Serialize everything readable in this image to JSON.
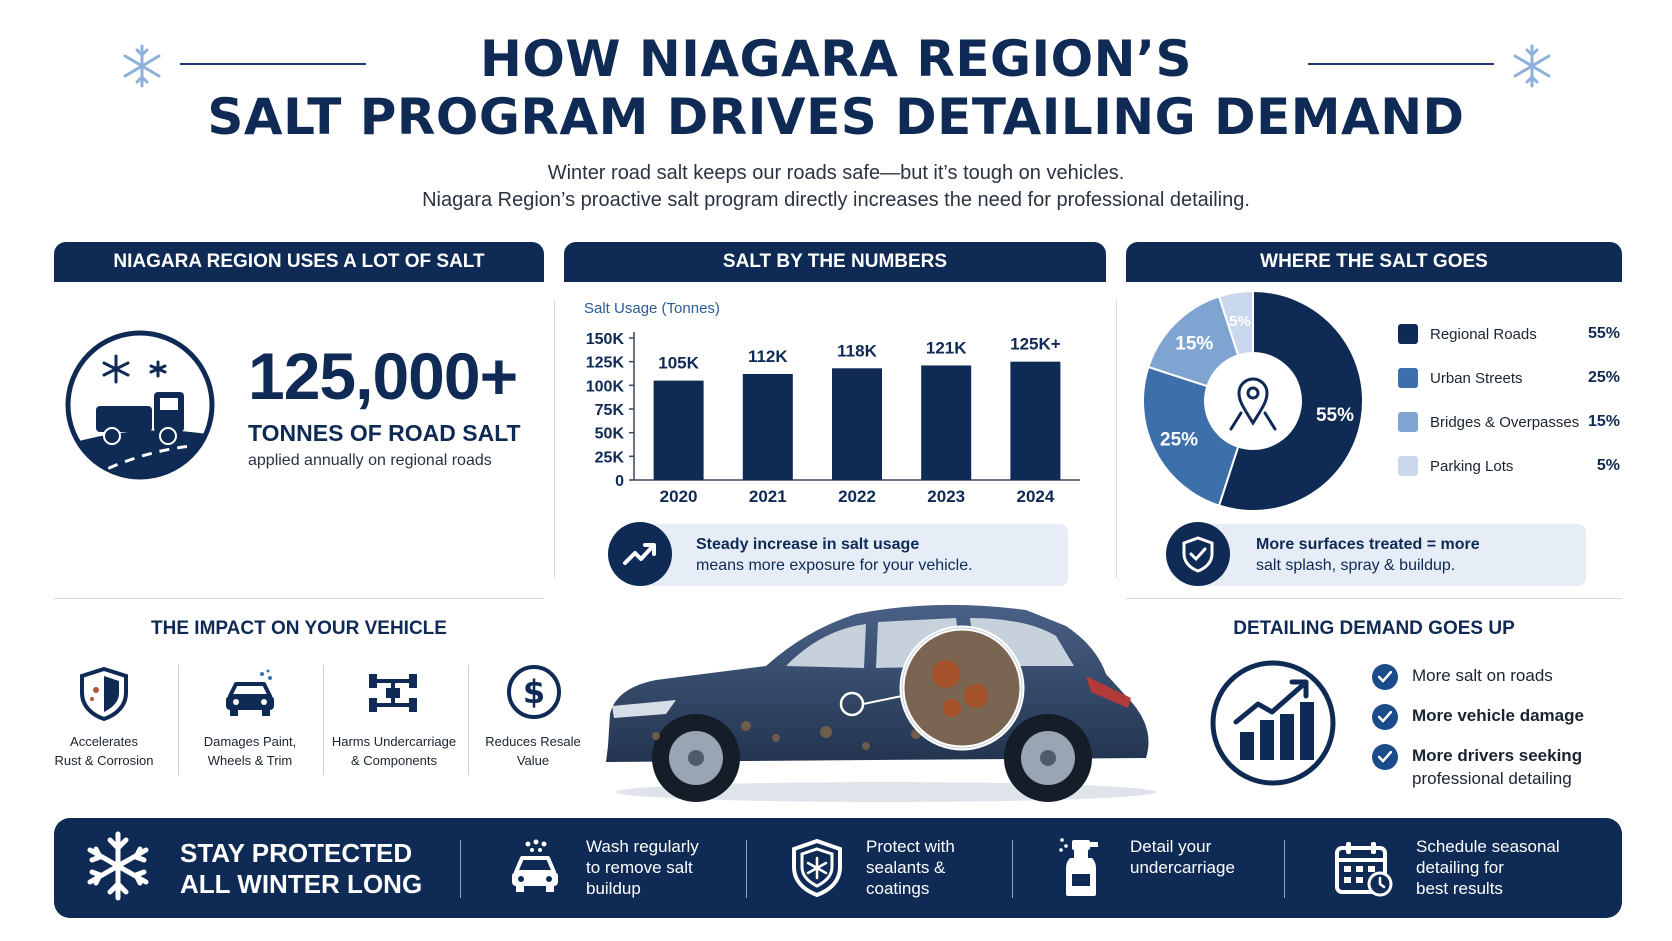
{
  "header": {
    "title_line1": "HOW NIAGARA REGION’S",
    "title_line2": "SALT PROGRAM DRIVES DETAILING DEMAND",
    "subtitle_line1": "Winter road salt keeps our roads safe—but it’s tough on vehicles.",
    "subtitle_line2": "Niagara Region’s proactive salt program directly increases the need for professional detailing."
  },
  "panel_usage": {
    "banner": "NIAGARA REGION USES A LOT OF SALT",
    "big_number": "125,000+",
    "unit_label": "TONNES OF ROAD SALT",
    "caption": "applied annually on regional roads"
  },
  "panel_numbers": {
    "banner": "SALT BY THE NUMBERS",
    "callout_line1": "Steady increase in salt usage",
    "callout_line2": "means more exposure for your vehicle."
  },
  "panel_where": {
    "banner": "WHERE THE SALT GOES",
    "callout_line1": "More surfaces treated = more",
    "callout_line2": "salt splash, spray & buildup."
  },
  "chart_data": [
    {
      "type": "bar",
      "title": "Salt Usage (Tonnes)",
      "categories": [
        "2020",
        "2021",
        "2022",
        "2023",
        "2024"
      ],
      "values": [
        105000,
        112000,
        118000,
        121000,
        125000
      ],
      "data_labels": [
        "105K",
        "112K",
        "118K",
        "121K",
        "125K+"
      ],
      "yticks": [
        0,
        25000,
        50000,
        75000,
        100000,
        125000,
        150000
      ],
      "ytick_labels": [
        "0",
        "25K",
        "50K",
        "75K",
        "100K",
        "125K",
        "150K"
      ],
      "ylim": [
        0,
        150000
      ],
      "grid": false,
      "bar_color": "#0e2a55"
    },
    {
      "type": "pie",
      "donut": true,
      "labels": [
        "Regional Roads",
        "Urban Streets",
        "Bridges & Overpasses",
        "Parking Lots"
      ],
      "values": [
        55,
        25,
        15,
        5
      ],
      "value_labels": [
        "55%",
        "25%",
        "15%",
        "5%"
      ],
      "colors": [
        "#0e2a55",
        "#3d6fab",
        "#7fa4d2",
        "#c9d8ec"
      ],
      "legend_position": "right"
    }
  ],
  "impact": {
    "heading": "THE IMPACT ON YOUR VEHICLE",
    "items": [
      {
        "line1": "Accelerates",
        "line2": "Rust & Corrosion",
        "icon": "shield-rust-icon"
      },
      {
        "line1": "Damages Paint,",
        "line2": "Wheels & Trim",
        "icon": "car-damage-icon"
      },
      {
        "line1": "Harms Undercarriage",
        "line2": "& Components",
        "icon": "chassis-icon"
      },
      {
        "line1": "Reduces Resale",
        "line2": "Value",
        "icon": "dollar-icon"
      }
    ]
  },
  "demand": {
    "heading": "DETAILING DEMAND GOES UP",
    "items": [
      {
        "text": "More salt on roads"
      },
      {
        "text_bold": "More vehicle damage"
      },
      {
        "text_bold": "More drivers seeking",
        "text": "professional detailing"
      }
    ]
  },
  "footer": {
    "headline_line1": "STAY PROTECTED",
    "headline_line2": "ALL WINTER LONG",
    "tips": [
      {
        "lines": [
          "Wash regularly",
          "to remove salt",
          "buildup"
        ],
        "icon": "car-wash-icon"
      },
      {
        "lines": [
          "Protect with",
          "sealants &",
          "coatings"
        ],
        "icon": "shield-icon"
      },
      {
        "lines": [
          "Detail your",
          "undercarriage"
        ],
        "icon": "spray-bottle-icon"
      },
      {
        "lines": [
          "Schedule seasonal",
          "detailing for",
          "best results"
        ],
        "icon": "calendar-icon"
      }
    ]
  }
}
